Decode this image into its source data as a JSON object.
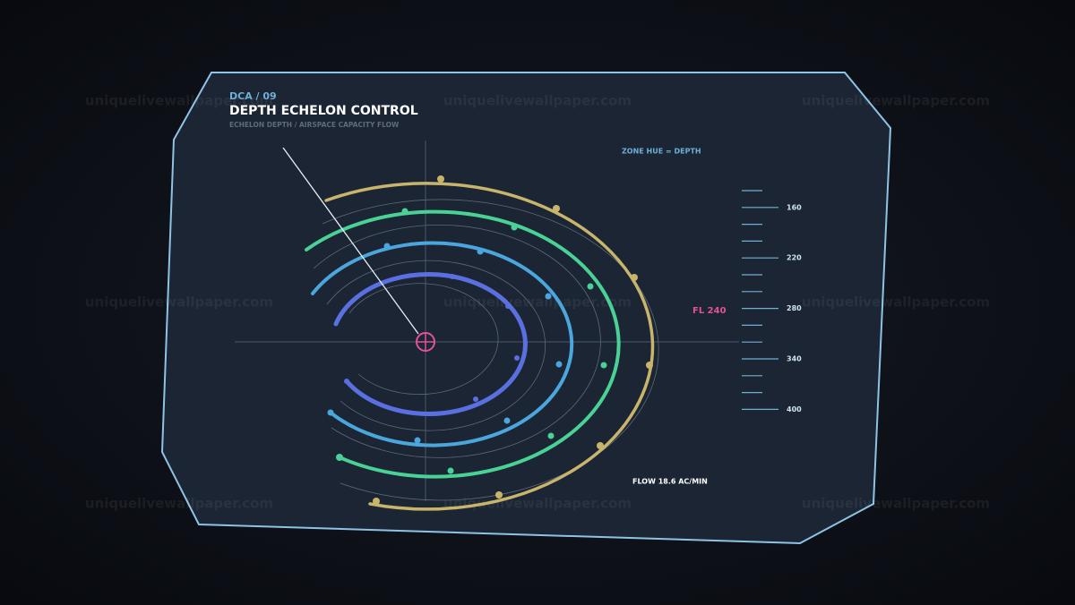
{
  "header": {
    "code": "DCA / 09",
    "title": "DEPTH ECHELON CONTROL",
    "subtitle": "ECHELON DEPTH / AIRSPACE CAPACITY FLOW"
  },
  "legend_note": "ZONE HUE = DEPTH",
  "readout": "FL 240",
  "flow": "FLOW 18.6 AC/MIN",
  "scale": {
    "labels": [
      160,
      220,
      280,
      340,
      400
    ]
  },
  "watermark": "uniquelivewallpaper.com"
}
